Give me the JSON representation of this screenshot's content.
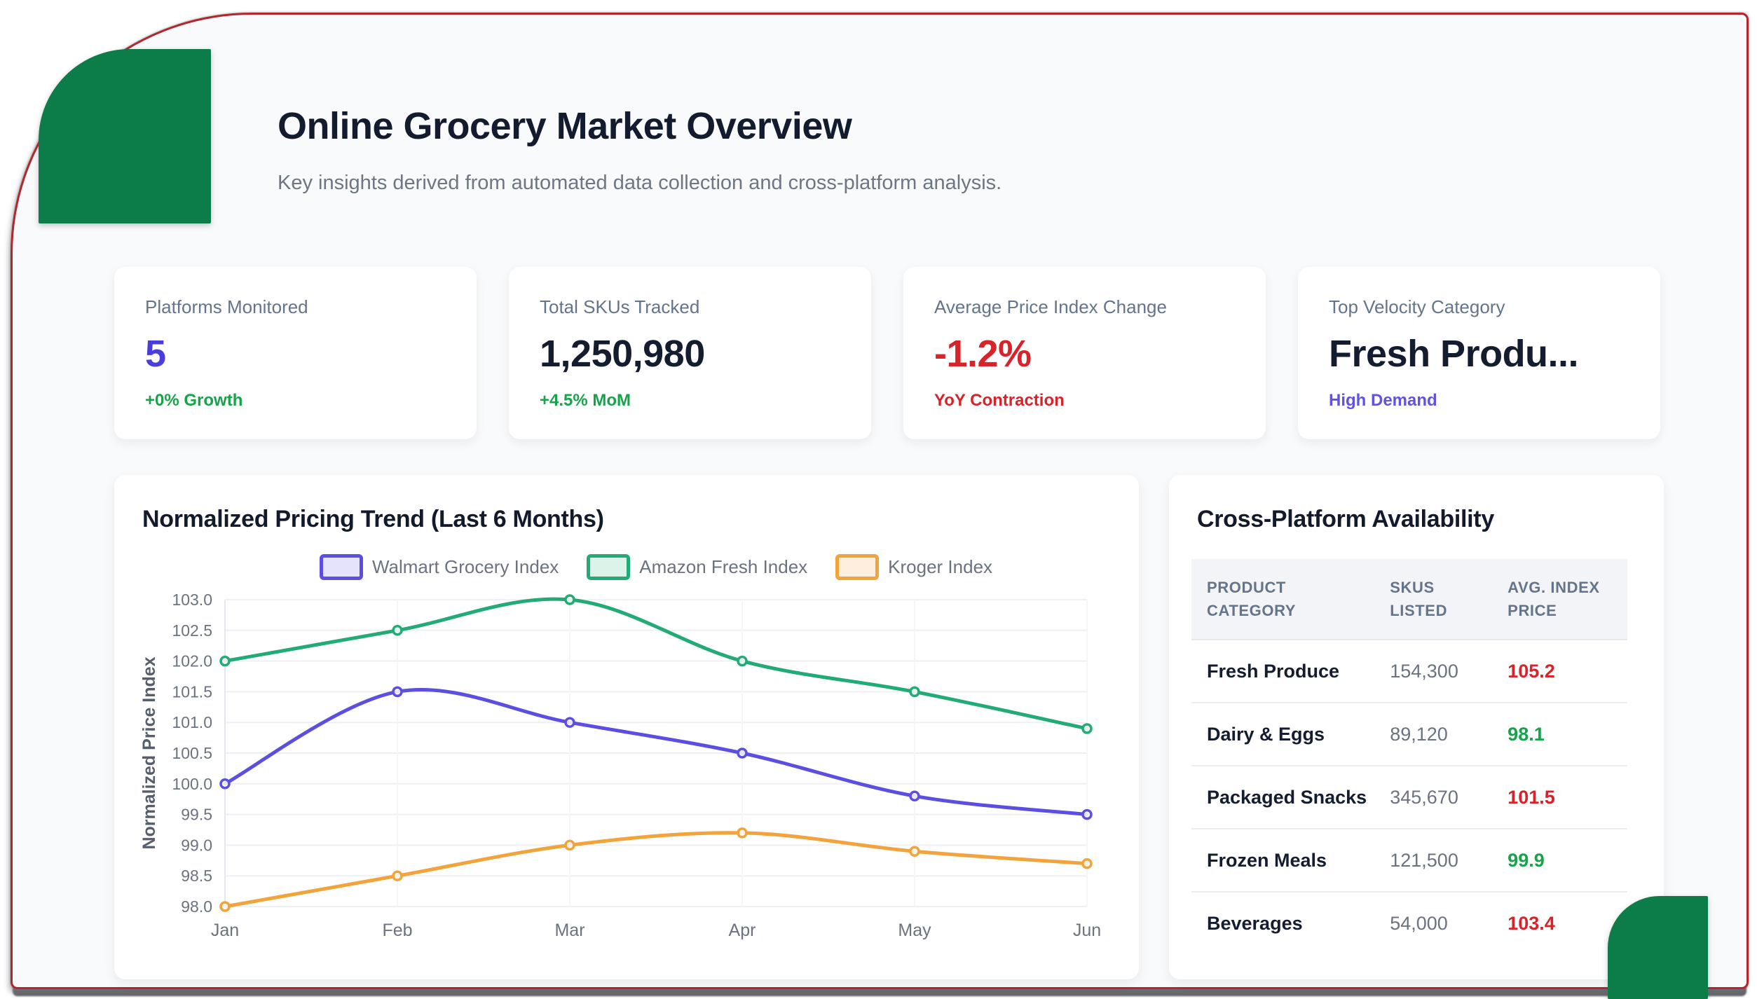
{
  "header": {
    "title": "Online Grocery Market Overview",
    "subtitle": "Key insights derived from automated data collection and cross-platform analysis."
  },
  "stats": [
    {
      "label": "Platforms Monitored",
      "value": "5",
      "sub": "+0% Growth",
      "value_color": "#4b3ddb",
      "sub_color": "#17a34a"
    },
    {
      "label": "Total SKUs Tracked",
      "value": "1,250,980",
      "sub": "+4.5% MoM",
      "value_color": "#141d30",
      "sub_color": "#17a34a"
    },
    {
      "label": "Average Price Index Change",
      "value": "-1.2%",
      "sub": "YoY Contraction",
      "value_color": "#d8232b",
      "sub_color": "#d8232b"
    },
    {
      "label": "Top Velocity Category",
      "value": "Fresh Produ...",
      "sub": "High Demand",
      "value_color": "#141d30",
      "sub_color": "#6052e2"
    }
  ],
  "chart": {
    "title": "Normalized Pricing Trend (Last 6 Months)"
  },
  "chart_data": {
    "type": "line",
    "x": [
      "Jan",
      "Feb",
      "Mar",
      "Apr",
      "May",
      "Jun"
    ],
    "series": [
      {
        "name": "Walmart Grocery Index",
        "color": "#5b4ee1",
        "swatch_fill": "#e5e2fb",
        "values": [
          100.0,
          101.5,
          101.0,
          100.5,
          99.8,
          99.5
        ]
      },
      {
        "name": "Amazon Fresh Index",
        "color": "#22ab74",
        "swatch_fill": "#dcf3e9",
        "values": [
          102.0,
          102.5,
          103.0,
          102.0,
          101.5,
          100.9
        ]
      },
      {
        "name": "Kroger Index",
        "color": "#f2a33c",
        "swatch_fill": "#fdeedd",
        "values": [
          98.0,
          98.5,
          99.0,
          99.2,
          98.9,
          98.7
        ]
      }
    ],
    "ylabel": "Normalized Price Index",
    "ylim": [
      98.0,
      103.0
    ],
    "ytick_step": 0.5,
    "legend_position": "top",
    "grid": true
  },
  "table": {
    "title": "Cross-Platform Availability",
    "columns": [
      "PRODUCT CATEGORY",
      "SKUS LISTED",
      "AVG. INDEX PRICE"
    ],
    "rows": [
      {
        "category": "Fresh Produce",
        "skus": "154,300",
        "price": "105.2",
        "price_color": "#d8232b"
      },
      {
        "category": "Dairy & Eggs",
        "skus": "89,120",
        "price": "98.1",
        "price_color": "#17a34a"
      },
      {
        "category": "Packaged Snacks",
        "skus": "345,670",
        "price": "101.5",
        "price_color": "#d8232b"
      },
      {
        "category": "Frozen Meals",
        "skus": "121,500",
        "price": "99.9",
        "price_color": "#17a34a"
      },
      {
        "category": "Beverages",
        "skus": "54,000",
        "price": "103.4",
        "price_color": "#d8232b"
      }
    ]
  },
  "theme": {
    "border_red": "#b5252c",
    "corner_green": "#0c7c49",
    "page_bg": "#f9fafb",
    "card_bg": "#ffffff",
    "grid_line": "#eef0f3",
    "axis_text": "#6b7280"
  }
}
